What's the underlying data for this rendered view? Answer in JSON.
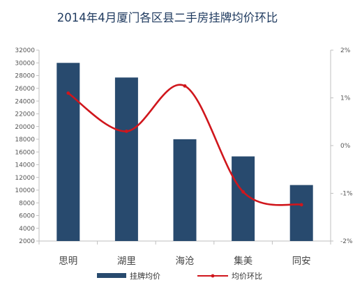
{
  "chart_data": {
    "type": "bar",
    "title": "2014年4月厦门各区县二手房挂牌均价环比",
    "categories": [
      "思明",
      "湖里",
      "海沧",
      "集美",
      "同安"
    ],
    "series": [
      {
        "name": "挂牌均价",
        "type": "bar",
        "axis": "left",
        "color": "#284a6e",
        "values": [
          30000,
          27700,
          18000,
          15300,
          10800
        ]
      },
      {
        "name": "均价环比",
        "type": "line",
        "smooth": true,
        "axis": "right",
        "color": "#d0161c",
        "values": [
          1.1,
          0.3,
          1.25,
          -0.97,
          -1.24
        ]
      }
    ],
    "y_left": {
      "min": 2000,
      "max": 32000,
      "step": 2000,
      "tick_labels": [
        "2000",
        "4000",
        "6000",
        "8000",
        "10000",
        "12000",
        "14000",
        "16000",
        "18000",
        "20000",
        "22000",
        "24000",
        "26000",
        "28000",
        "30000",
        "32000"
      ]
    },
    "y_right": {
      "min": -2,
      "max": 2,
      "step": 1,
      "tick_labels": [
        "-2%",
        "-1%",
        "0%",
        "1%",
        "2%"
      ]
    },
    "grid": false,
    "legend_position": "bottom",
    "axis_color": "#bfbfbf"
  }
}
